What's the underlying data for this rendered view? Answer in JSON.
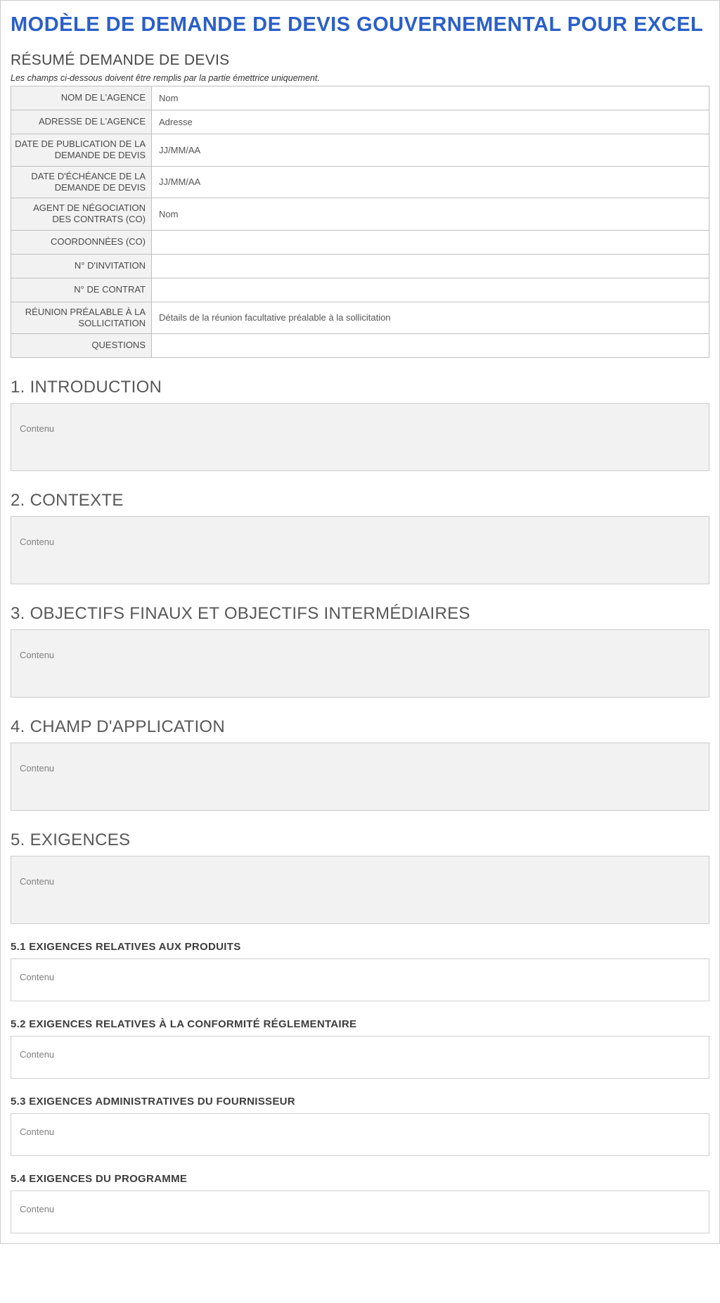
{
  "title": "MODÈLE DE DEMANDE DE DEVIS GOUVERNEMENTAL POUR EXCEL",
  "summary": {
    "heading": "RÉSUMÉ DEMANDE DE DEVIS",
    "note": "Les champs ci-dessous doivent être remplis par la partie émettrice uniquement.",
    "rows": [
      {
        "label": "NOM DE L'AGENCE",
        "value": "Nom",
        "tall": true
      },
      {
        "label": "ADRESSE DE L'AGENCE",
        "value": "Adresse",
        "tall": true
      },
      {
        "label": "DATE DE PUBLICATION DE LA DEMANDE DE DEVIS",
        "value": "JJ/MM/AA"
      },
      {
        "label": "DATE D'ÉCHÉANCE DE LA DEMANDE DE DEVIS",
        "value": "JJ/MM/AA"
      },
      {
        "label": "AGENT DE NÉGOCIATION DES CONTRATS (CO)",
        "value": "Nom"
      },
      {
        "label": "COORDONNÉES (CO)",
        "value": "",
        "tall": true
      },
      {
        "label": "N° D'INVITATION",
        "value": "",
        "tall": true
      },
      {
        "label": "N° DE CONTRAT",
        "value": "",
        "tall": true
      },
      {
        "label": "RÉUNION PRÉALABLE À LA SOLLICITATION",
        "value": "Détails de la réunion facultative préalable à la sollicitation"
      },
      {
        "label": "QUESTIONS",
        "value": "",
        "tall": true
      }
    ]
  },
  "sections": [
    {
      "num": "1",
      "title": "1. INTRODUCTION",
      "content": "Contenu"
    },
    {
      "num": "2",
      "title": "2. CONTEXTE",
      "content": "Contenu"
    },
    {
      "num": "3",
      "title": "3. OBJECTIFS FINAUX ET OBJECTIFS INTERMÉDIAIRES",
      "content": "Contenu"
    },
    {
      "num": "4",
      "title": "4. CHAMP D'APPLICATION",
      "content": "Contenu"
    },
    {
      "num": "5",
      "title": "5. EXIGENCES",
      "content": "Contenu",
      "subsections": [
        {
          "title": "5.1 EXIGENCES RELATIVES AUX PRODUITS",
          "content": "Contenu"
        },
        {
          "title": "5.2 EXIGENCES RELATIVES À LA CONFORMITÉ RÉGLEMENTAIRE",
          "content": "Contenu"
        },
        {
          "title": "5.3 EXIGENCES ADMINISTRATIVES DU FOURNISSEUR",
          "content": "Contenu"
        },
        {
          "title": "5.4 EXIGENCES DU PROGRAMME",
          "content": "Contenu"
        }
      ]
    }
  ],
  "colors": {
    "title": "#2a5fc9",
    "heading_text": "#585858",
    "label_bg": "#f2f2f2",
    "border": "#bfbfbf",
    "placeholder_text": "#808080",
    "sub_border": "#d0d0d0"
  }
}
